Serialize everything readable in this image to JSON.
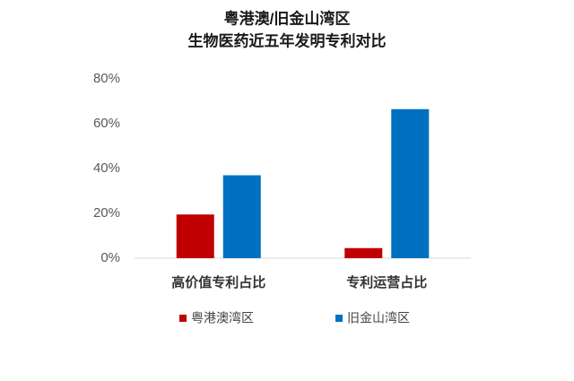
{
  "chart_data": {
    "type": "bar",
    "title": [
      "粤港澳/旧金山湾区",
      "生物医药近五年发明专利对比"
    ],
    "categories": [
      "高价值专利占比",
      "专利运营占比"
    ],
    "series": [
      {
        "name": "粤港澳湾区",
        "color": "#c00000",
        "values": [
          19.5,
          4.5
        ]
      },
      {
        "name": "旧金山湾区",
        "color": "#0070c0",
        "values": [
          37,
          66.5
        ]
      }
    ],
    "ylim": [
      0,
      80
    ],
    "yticks": [
      {
        "value": 0,
        "label": "0%"
      },
      {
        "value": 20,
        "label": "20%"
      },
      {
        "value": 40,
        "label": "40%"
      },
      {
        "value": 60,
        "label": "60%"
      },
      {
        "value": 80,
        "label": "80%"
      }
    ],
    "grid": false,
    "legend": "bottom"
  }
}
